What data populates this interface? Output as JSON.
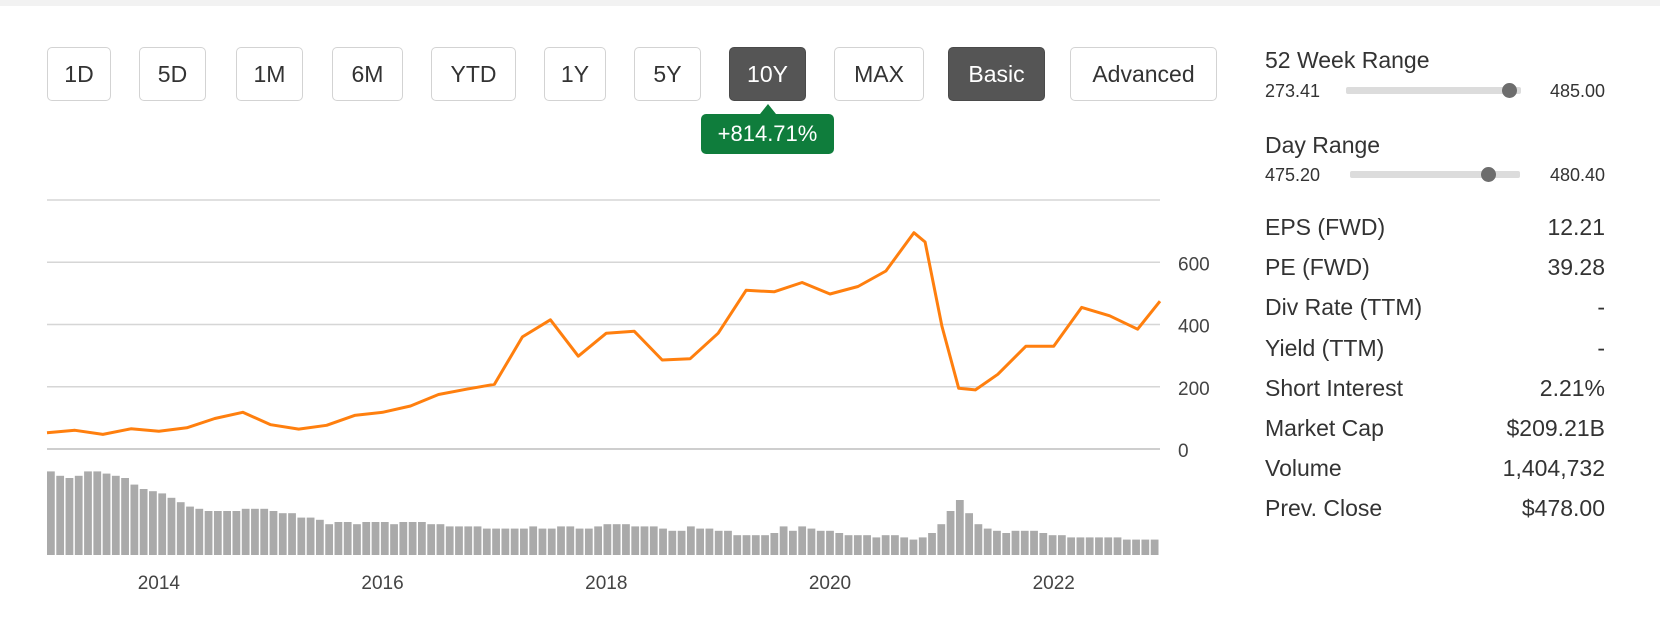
{
  "range_buttons": [
    {
      "label": "1D",
      "active": false
    },
    {
      "label": "5D",
      "active": false
    },
    {
      "label": "1M",
      "active": false
    },
    {
      "label": "6M",
      "active": false
    },
    {
      "label": "YTD",
      "active": false
    },
    {
      "label": "1Y",
      "active": false
    },
    {
      "label": "5Y",
      "active": false
    },
    {
      "label": "10Y",
      "active": true
    },
    {
      "label": "MAX",
      "active": false
    }
  ],
  "mode_buttons": [
    {
      "label": "Basic",
      "active": true
    },
    {
      "label": "Advanced",
      "active": false
    }
  ],
  "change_badge": "+814.71%",
  "colors": {
    "price_line": "#ff7f0e",
    "volume_bars": "#aaaaaa",
    "badge_green": "#0f7d3c",
    "active_button": "#555555"
  },
  "stats": {
    "week52": {
      "title": "52 Week Range",
      "low": "273.41",
      "high": "485.00",
      "position": 0.93
    },
    "day": {
      "title": "Day Range",
      "low": "475.20",
      "high": "480.40",
      "position": 0.81
    },
    "rows": [
      {
        "label": "EPS (FWD)",
        "value": "12.21"
      },
      {
        "label": "PE (FWD)",
        "value": "39.28"
      },
      {
        "label": "Div Rate (TTM)",
        "value": "-"
      },
      {
        "label": "Yield (TTM)",
        "value": "-"
      },
      {
        "label": "Short Interest",
        "value": "2.21%"
      },
      {
        "label": "Market Cap",
        "value": "$209.21B"
      },
      {
        "label": "Volume",
        "value": "1,404,732"
      },
      {
        "label": "Prev. Close",
        "value": "$478.00"
      }
    ]
  },
  "chart_data": {
    "type": "line",
    "xlabel": "",
    "ylabel": "",
    "xlim": [
      2013.0,
      2022.95
    ],
    "ylim": [
      0,
      800
    ],
    "ytick_values": [
      0,
      200,
      400,
      600
    ],
    "ytick_labels": [
      "0",
      "200",
      "400",
      "600"
    ],
    "xtick_values": [
      2014,
      2016,
      2018,
      2020,
      2022
    ],
    "xtick_labels": [
      "2014",
      "2016",
      "2018",
      "2020",
      "2022"
    ],
    "grid": true,
    "series": [
      {
        "x": [
          2013.0,
          2013.25,
          2013.5,
          2013.75,
          2014.0,
          2014.25,
          2014.5,
          2014.75,
          2015.0,
          2015.25,
          2015.5,
          2015.75,
          2016.0,
          2016.25,
          2016.5,
          2016.75,
          2017.0,
          2017.25,
          2017.5,
          2017.75,
          2018.0,
          2018.25,
          2018.5,
          2018.75,
          2019.0,
          2019.25,
          2019.5,
          2019.75,
          2020.0,
          2020.25,
          2020.5,
          2020.75,
          2020.85,
          2021.0,
          2021.15,
          2021.3,
          2021.5,
          2021.75,
          2022.0,
          2022.25,
          2022.5,
          2022.75,
          2022.95
        ],
        "y": [
          52,
          60,
          47,
          65,
          57,
          68,
          98,
          118,
          78,
          64,
          76,
          108,
          118,
          138,
          175,
          192,
          208,
          360,
          415,
          298,
          372,
          378,
          286,
          290,
          372,
          510,
          505,
          535,
          498,
          522,
          572,
          695,
          665,
          395,
          195,
          190,
          240,
          330,
          330,
          455,
          428,
          385,
          475
        ]
      }
    ],
    "volume": [
      38,
      36,
      35,
      36,
      38,
      38,
      37,
      36,
      35,
      32,
      30,
      29,
      28,
      26,
      24,
      22,
      21,
      20,
      20,
      20,
      20,
      21,
      21,
      21,
      20,
      19,
      19,
      17,
      17,
      16,
      14,
      15,
      15,
      14,
      15,
      15,
      15,
      14,
      15,
      15,
      15,
      14,
      14,
      13,
      13,
      13,
      13,
      12,
      12,
      12,
      12,
      12,
      13,
      12,
      12,
      13,
      13,
      12,
      12,
      13,
      14,
      14,
      14,
      13,
      13,
      13,
      12,
      11,
      11,
      13,
      12,
      12,
      11,
      11,
      9,
      9,
      9,
      9,
      10,
      13,
      11,
      13,
      12,
      11,
      11,
      10,
      9,
      9,
      9,
      8,
      9,
      9,
      8,
      7,
      8,
      10,
      14,
      20,
      25,
      19,
      14,
      12,
      11,
      10,
      11,
      11,
      11,
      10,
      9,
      9,
      8,
      8,
      8,
      8,
      8,
      8,
      7,
      7,
      7,
      7
    ]
  }
}
